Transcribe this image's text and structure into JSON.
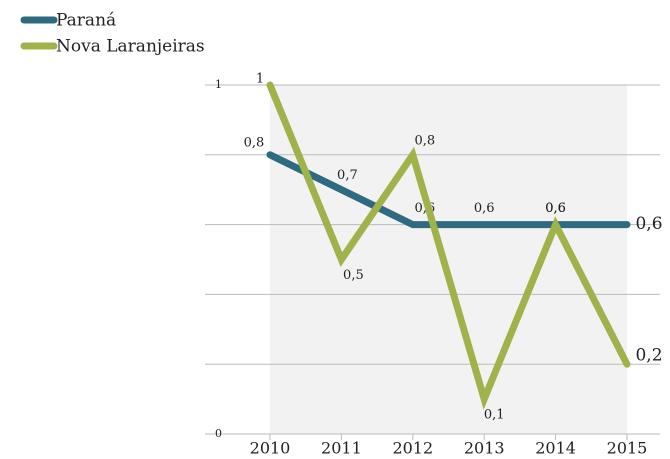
{
  "chart_data": {
    "type": "line",
    "categories": [
      "2010",
      "2011",
      "2012",
      "2013",
      "2014",
      "2015"
    ],
    "series": [
      {
        "name": "Paraná",
        "color": "#2e6b80",
        "values": [
          0.8,
          0.7,
          0.6,
          0.6,
          0.6,
          0.6
        ],
        "value_labels": [
          "0,8",
          "0,7",
          "0,6",
          "0,6",
          "0,6",
          "0,6"
        ]
      },
      {
        "name": "Nova Laranjeiras",
        "color": "#9fb34a",
        "values": [
          1,
          0.5,
          0.8,
          0.1,
          0.6,
          0.2
        ],
        "value_labels": [
          "1",
          "0,5",
          "0,8",
          "0,1",
          "0,6",
          "0,2"
        ]
      }
    ],
    "ylim": [
      0,
      1
    ],
    "yticks": [
      0,
      {
        "value": 0.2,
        "label": null
      },
      {
        "value": 0.4,
        "label": null
      },
      {
        "value": 0.6,
        "label": null
      },
      {
        "value": 0.8,
        "label": null
      },
      1
    ],
    "grid": true,
    "legend": "top-left"
  }
}
